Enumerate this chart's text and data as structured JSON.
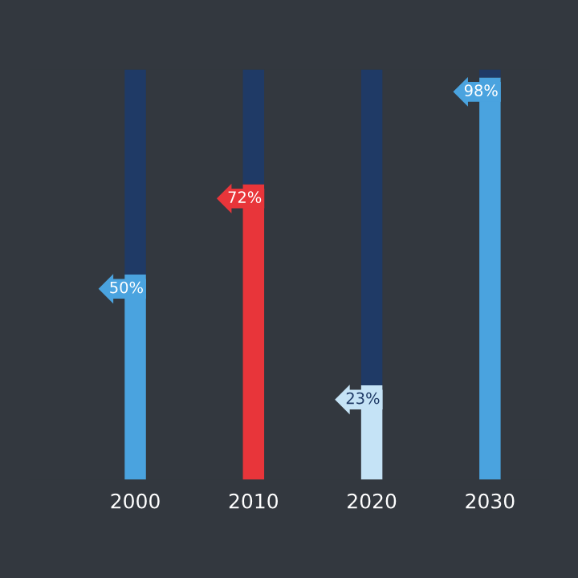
{
  "chart_data": {
    "type": "bar",
    "stacked": true,
    "categories": [
      "2000",
      "2010",
      "2020",
      "2030"
    ],
    "series": [
      {
        "colors": [
          "#4aa3df",
          "#e8353a",
          "#c5e3f6",
          "#4aa3df"
        ],
        "values": [
          50,
          72,
          23,
          98
        ],
        "value_labels": [
          "50%",
          "72%",
          "23%",
          "98%"
        ]
      },
      {
        "color": "#1f3a66",
        "values": [
          50,
          28,
          77,
          2
        ]
      }
    ],
    "ylim": [
      0,
      100
    ],
    "tick_labels": "x"
  }
}
